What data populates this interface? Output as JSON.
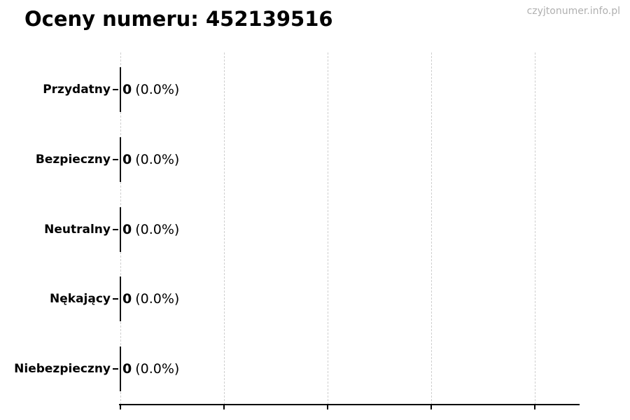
{
  "header": {
    "title": "Oceny numeru: 452139516",
    "watermark": "czyjtonumer.info.pl"
  },
  "chart_data": {
    "type": "bar",
    "orientation": "horizontal",
    "title": "Oceny numeru: 452139516",
    "categories": [
      "Przydatny",
      "Bezpieczny",
      "Neutralny",
      "Nękający",
      "Niebezpieczny"
    ],
    "values": [
      0,
      0,
      0,
      0,
      0
    ],
    "percent_labels": [
      "0.0%",
      "0.0%",
      "0.0%",
      "0.0%",
      "0.0%"
    ],
    "x_axis": {
      "gridline_count": 5,
      "tick_labels_visible": false,
      "grid_style": "dashed"
    },
    "legend": false,
    "colors": {
      "background": "#ffffff",
      "text": "#000000",
      "bar_edge": "#111111",
      "gridline": "#cfcfcf",
      "watermark": "#b0b0b0",
      "axis": "#000000"
    }
  }
}
